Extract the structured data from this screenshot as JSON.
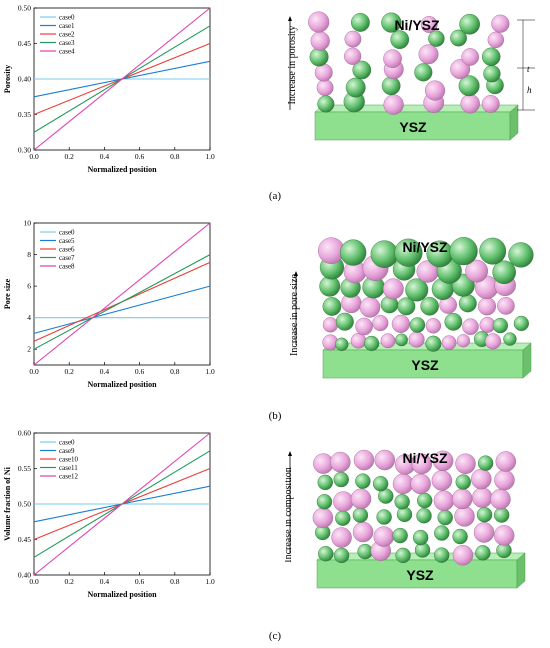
{
  "figures": [
    {
      "caption": "(a)",
      "schematic": {
        "top_label": "Ni/YSZ",
        "substrate_label": "YSZ",
        "arrow_text": "Increase in porosity",
        "dim_labels": [
          "t",
          "h"
        ]
      }
    },
    {
      "caption": "(b)",
      "schematic": {
        "top_label": "Ni/YSZ",
        "substrate_label": "YSZ",
        "arrow_text": "Increase in pore size"
      }
    },
    {
      "caption": "(c)",
      "schematic": {
        "top_label": "Ni/YSZ",
        "substrate_label": "YSZ",
        "arrow_text": "Increase in composition"
      }
    }
  ],
  "colors": {
    "case_a": "#7ec8ef",
    "case_b": "#1a7fd4",
    "case_c": "#e8403a",
    "case_d": "#1f9a5a",
    "case_e": "#e040b0",
    "pink_sphere": "#e9a6dc",
    "green_sphere": "#5fbf6b",
    "substrate": "#8ee08e"
  },
  "chart_data": [
    {
      "type": "line",
      "title": "",
      "xlabel": "Normalized position",
      "ylabel": "Porosity",
      "xlim": [
        0.0,
        1.0
      ],
      "ylim": [
        0.3,
        0.5
      ],
      "xticks": [
        "0.0",
        "0.2",
        "0.4",
        "0.6",
        "0.8",
        "1.0"
      ],
      "yticks": [
        "0.30",
        "0.35",
        "0.40",
        "0.45",
        "0.50"
      ],
      "legend_position": "top-left",
      "grid": false,
      "series": [
        {
          "name": "case0",
          "x": [
            0,
            1
          ],
          "y": [
            0.4,
            0.4
          ]
        },
        {
          "name": "case1",
          "x": [
            0,
            1
          ],
          "y": [
            0.375,
            0.425
          ]
        },
        {
          "name": "case2",
          "x": [
            0,
            1
          ],
          "y": [
            0.35,
            0.45
          ]
        },
        {
          "name": "case3",
          "x": [
            0,
            1
          ],
          "y": [
            0.325,
            0.475
          ]
        },
        {
          "name": "case4",
          "x": [
            0,
            1
          ],
          "y": [
            0.3,
            0.5
          ]
        }
      ]
    },
    {
      "type": "line",
      "title": "",
      "xlabel": "Normalized position",
      "ylabel": "Pore size",
      "xlim": [
        0.0,
        1.0
      ],
      "ylim": [
        1,
        10
      ],
      "xticks": [
        "0.0",
        "0.2",
        "0.4",
        "0.6",
        "0.8",
        "1.0"
      ],
      "yticks": [
        "2",
        "4",
        "6",
        "8",
        "10"
      ],
      "legend_position": "top-left",
      "grid": false,
      "series": [
        {
          "name": "case0",
          "x": [
            0,
            1
          ],
          "y": [
            4,
            4
          ]
        },
        {
          "name": "case5",
          "x": [
            0,
            1
          ],
          "y": [
            3,
            6
          ]
        },
        {
          "name": "case6",
          "x": [
            0,
            1
          ],
          "y": [
            2.5,
            7.5
          ]
        },
        {
          "name": "case7",
          "x": [
            0,
            1
          ],
          "y": [
            2,
            8
          ]
        },
        {
          "name": "case8",
          "x": [
            0,
            1
          ],
          "y": [
            1,
            10
          ]
        }
      ]
    },
    {
      "type": "line",
      "title": "",
      "xlabel": "Normalized position",
      "ylabel": "Volume fraction of Ni",
      "xlim": [
        0.0,
        1.0
      ],
      "ylim": [
        0.4,
        0.6
      ],
      "xticks": [
        "0.0",
        "0.2",
        "0.4",
        "0.6",
        "0.8",
        "1.0"
      ],
      "yticks": [
        "0.40",
        "0.45",
        "0.50",
        "0.55",
        "0.60"
      ],
      "legend_position": "top-left",
      "grid": false,
      "series": [
        {
          "name": "case0",
          "x": [
            0,
            1
          ],
          "y": [
            0.5,
            0.5
          ]
        },
        {
          "name": "case9",
          "x": [
            0,
            1
          ],
          "y": [
            0.475,
            0.525
          ]
        },
        {
          "name": "case10",
          "x": [
            0,
            1
          ],
          "y": [
            0.45,
            0.55
          ]
        },
        {
          "name": "case11",
          "x": [
            0,
            1
          ],
          "y": [
            0.425,
            0.575
          ]
        },
        {
          "name": "case12",
          "x": [
            0,
            1
          ],
          "y": [
            0.4,
            0.6
          ]
        }
      ]
    }
  ]
}
